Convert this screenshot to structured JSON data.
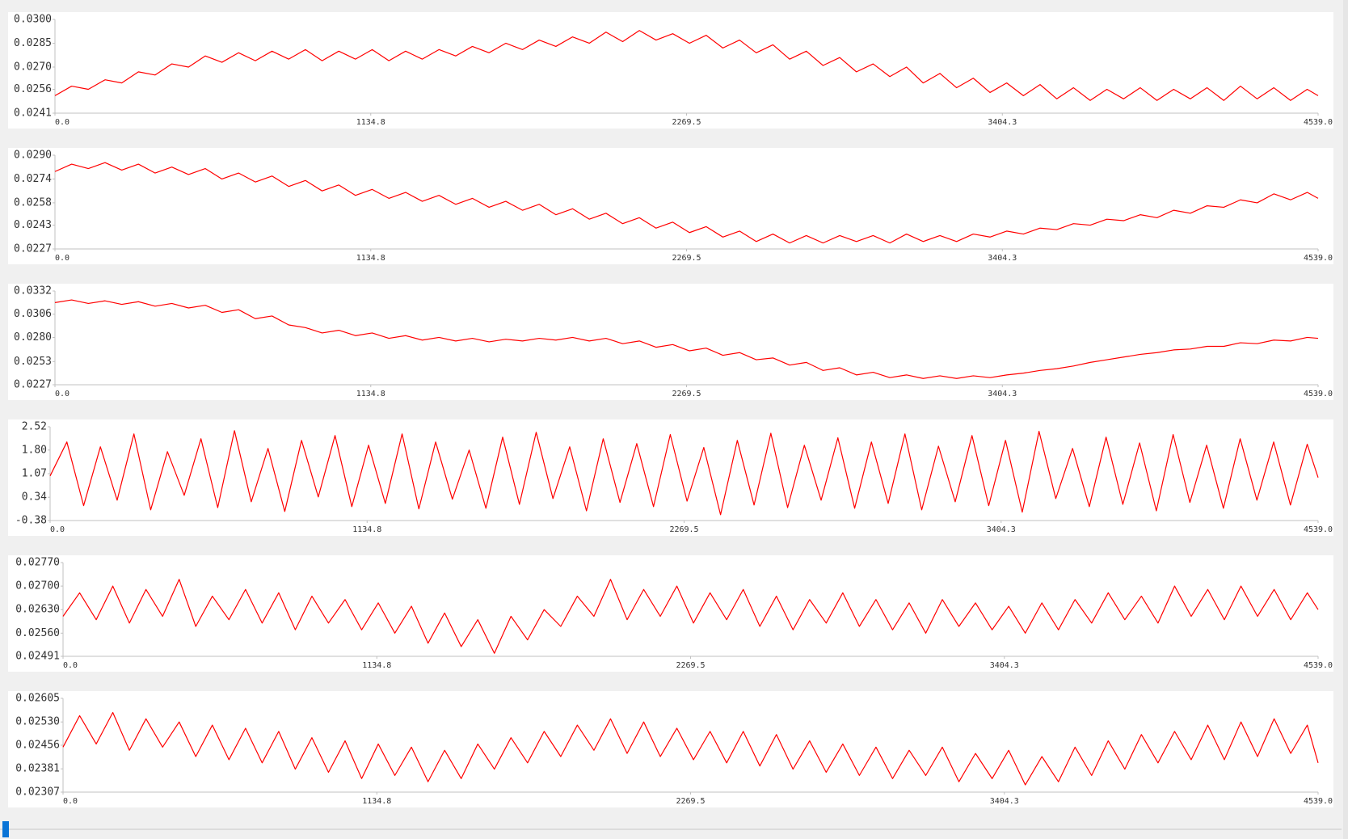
{
  "chart_data": [
    {
      "type": "line",
      "x": [
        0,
        60,
        120,
        180,
        240,
        300,
        360,
        420,
        480,
        540,
        600,
        660,
        720,
        780,
        840,
        900,
        960,
        1020,
        1080,
        1140,
        1200,
        1260,
        1320,
        1380,
        1440,
        1500,
        1560,
        1620,
        1680,
        1740,
        1800,
        1860,
        1920,
        1980,
        2040,
        2100,
        2160,
        2220,
        2280,
        2340,
        2400,
        2460,
        2520,
        2580,
        2640,
        2700,
        2760,
        2820,
        2880,
        2940,
        3000,
        3060,
        3120,
        3180,
        3240,
        3300,
        3360,
        3420,
        3480,
        3540,
        3600,
        3660,
        3720,
        3780,
        3840,
        3900,
        3960,
        4020,
        4080,
        4140,
        4200,
        4260,
        4320,
        4380,
        4440,
        4500,
        4539
      ],
      "series": [
        {
          "color": "#ff0000",
          "values": [
            0.0252,
            0.0258,
            0.0256,
            0.0262,
            0.026,
            0.0267,
            0.0265,
            0.0272,
            0.027,
            0.0277,
            0.0273,
            0.0279,
            0.0274,
            0.028,
            0.0275,
            0.0281,
            0.0274,
            0.028,
            0.0275,
            0.0281,
            0.0274,
            0.028,
            0.0275,
            0.0281,
            0.0277,
            0.0283,
            0.0279,
            0.0285,
            0.0281,
            0.0287,
            0.0283,
            0.0289,
            0.0285,
            0.0292,
            0.0286,
            0.0293,
            0.0287,
            0.0291,
            0.0285,
            0.029,
            0.0282,
            0.0287,
            0.0279,
            0.0284,
            0.0275,
            0.028,
            0.0271,
            0.0276,
            0.0267,
            0.0272,
            0.0264,
            0.027,
            0.026,
            0.0266,
            0.0257,
            0.0263,
            0.0254,
            0.026,
            0.0252,
            0.0259,
            0.025,
            0.0257,
            0.0249,
            0.0256,
            0.025,
            0.0257,
            0.0249,
            0.0256,
            0.025,
            0.0257,
            0.0249,
            0.0258,
            0.025,
            0.0257,
            0.0249,
            0.0256,
            0.0252
          ]
        }
      ],
      "xlim": [
        0,
        4539
      ],
      "xticks": [
        {
          "value": 0,
          "label": "0.0"
        },
        1134.8,
        2269.5,
        3404.3,
        {
          "value": 4539,
          "label": "4539.0"
        }
      ],
      "ylim": [
        0.0241,
        0.03
      ],
      "yticks": [
        0.0241,
        0.0256,
        {
          "value": 0.027,
          "label": "0.0270"
        },
        0.0285,
        {
          "value": 0.03,
          "label": "0.0300"
        }
      ]
    },
    {
      "type": "line",
      "x": [
        0,
        60,
        120,
        180,
        240,
        300,
        360,
        420,
        480,
        540,
        600,
        660,
        720,
        780,
        840,
        900,
        960,
        1020,
        1080,
        1140,
        1200,
        1260,
        1320,
        1380,
        1440,
        1500,
        1560,
        1620,
        1680,
        1740,
        1800,
        1860,
        1920,
        1980,
        2040,
        2100,
        2160,
        2220,
        2280,
        2340,
        2400,
        2460,
        2520,
        2580,
        2640,
        2700,
        2760,
        2820,
        2880,
        2940,
        3000,
        3060,
        3120,
        3180,
        3240,
        3300,
        3360,
        3420,
        3480,
        3540,
        3600,
        3660,
        3720,
        3780,
        3840,
        3900,
        3960,
        4020,
        4080,
        4140,
        4200,
        4260,
        4320,
        4380,
        4440,
        4500,
        4539
      ],
      "series": [
        {
          "color": "#ff0000",
          "values": [
            0.0279,
            0.0284,
            0.0281,
            0.0285,
            0.028,
            0.0284,
            0.0278,
            0.0282,
            0.0277,
            0.0281,
            0.0274,
            0.0278,
            0.0272,
            0.0276,
            0.0269,
            0.0273,
            0.0266,
            0.027,
            0.0263,
            0.0267,
            0.0261,
            0.0265,
            0.0259,
            0.0263,
            0.0257,
            0.0261,
            0.0255,
            0.0259,
            0.0253,
            0.0257,
            0.025,
            0.0254,
            0.0247,
            0.0251,
            0.0244,
            0.0248,
            0.0241,
            0.0245,
            0.0238,
            0.0242,
            0.0235,
            0.0239,
            0.0232,
            0.0237,
            0.0231,
            0.0236,
            0.0231,
            0.0236,
            0.0232,
            0.0236,
            0.0231,
            0.0237,
            0.0232,
            0.0236,
            0.0232,
            0.0237,
            0.0235,
            0.0239,
            0.0237,
            0.0241,
            0.024,
            0.0244,
            0.0243,
            0.0247,
            0.0246,
            0.025,
            0.0248,
            0.0253,
            0.0251,
            0.0256,
            0.0255,
            0.026,
            0.0258,
            0.0264,
            0.026,
            0.0265,
            0.0261
          ]
        }
      ],
      "xlim": [
        0,
        4539
      ],
      "xticks": [
        {
          "value": 0,
          "label": "0.0"
        },
        1134.8,
        2269.5,
        3404.3,
        {
          "value": 4539,
          "label": "4539.0"
        }
      ],
      "ylim": [
        0.0227,
        0.029
      ],
      "yticks": [
        0.0227,
        0.0243,
        0.0258,
        0.0274,
        {
          "value": 0.029,
          "label": "0.0290"
        }
      ]
    },
    {
      "type": "line",
      "x": [
        0,
        60,
        120,
        180,
        240,
        300,
        360,
        420,
        480,
        540,
        600,
        660,
        720,
        780,
        840,
        900,
        960,
        1020,
        1080,
        1140,
        1200,
        1260,
        1320,
        1380,
        1440,
        1500,
        1560,
        1620,
        1680,
        1740,
        1800,
        1860,
        1920,
        1980,
        2040,
        2100,
        2160,
        2220,
        2280,
        2340,
        2400,
        2460,
        2520,
        2580,
        2640,
        2700,
        2760,
        2820,
        2880,
        2940,
        3000,
        3060,
        3120,
        3180,
        3240,
        3300,
        3360,
        3420,
        3480,
        3540,
        3600,
        3660,
        3720,
        3780,
        3840,
        3900,
        3960,
        4020,
        4080,
        4140,
        4200,
        4260,
        4320,
        4380,
        4440,
        4500,
        4539
      ],
      "series": [
        {
          "color": "#ff0000",
          "values": [
            0.0319,
            0.0322,
            0.0318,
            0.0321,
            0.0317,
            0.032,
            0.0315,
            0.0318,
            0.0313,
            0.0316,
            0.0308,
            0.0311,
            0.0301,
            0.0304,
            0.0294,
            0.0291,
            0.0285,
            0.0288,
            0.0282,
            0.0285,
            0.0279,
            0.0282,
            0.0277,
            0.028,
            0.0276,
            0.0279,
            0.0275,
            0.0278,
            0.0276,
            0.0279,
            0.0277,
            0.028,
            0.0276,
            0.0279,
            0.0273,
            0.0276,
            0.0269,
            0.0272,
            0.0265,
            0.0268,
            0.026,
            0.0263,
            0.0255,
            0.0257,
            0.0249,
            0.0252,
            0.0243,
            0.0246,
            0.0238,
            0.0241,
            0.0235,
            0.0238,
            0.0234,
            0.0237,
            0.0234,
            0.0237,
            0.0235,
            0.0238,
            0.024,
            0.0243,
            0.0245,
            0.0248,
            0.0252,
            0.0255,
            0.0258,
            0.0261,
            0.0263,
            0.0266,
            0.0267,
            0.027,
            0.027,
            0.0274,
            0.0273,
            0.0277,
            0.0276,
            0.028,
            0.0279
          ]
        }
      ],
      "xlim": [
        0,
        4539
      ],
      "xticks": [
        {
          "value": 0,
          "label": "0.0"
        },
        1134.8,
        2269.5,
        3404.3,
        {
          "value": 4539,
          "label": "4539.0"
        }
      ],
      "ylim": [
        0.0227,
        0.0332
      ],
      "yticks": [
        0.0227,
        0.0253,
        {
          "value": 0.028,
          "label": "0.0280"
        },
        0.0306,
        0.0332
      ]
    },
    {
      "type": "line",
      "x": [
        0,
        60,
        120,
        180,
        240,
        300,
        360,
        420,
        480,
        540,
        600,
        660,
        720,
        780,
        840,
        900,
        960,
        1020,
        1080,
        1140,
        1200,
        1260,
        1320,
        1380,
        1440,
        1500,
        1560,
        1620,
        1680,
        1740,
        1800,
        1860,
        1920,
        1980,
        2040,
        2100,
        2160,
        2220,
        2280,
        2340,
        2400,
        2460,
        2520,
        2580,
        2640,
        2700,
        2760,
        2820,
        2880,
        2940,
        3000,
        3060,
        3120,
        3180,
        3240,
        3300,
        3360,
        3420,
        3480,
        3540,
        3600,
        3660,
        3720,
        3780,
        3840,
        3900,
        3960,
        4020,
        4080,
        4140,
        4200,
        4260,
        4320,
        4380,
        4440,
        4500,
        4539
      ],
      "series": [
        {
          "color": "#ff0000",
          "values": [
            1.0,
            2.05,
            0.08,
            1.9,
            0.25,
            2.3,
            -0.05,
            1.75,
            0.4,
            2.15,
            0.02,
            2.4,
            0.2,
            1.85,
            -0.1,
            2.1,
            0.35,
            2.25,
            0.05,
            1.95,
            0.15,
            2.3,
            -0.02,
            2.05,
            0.28,
            1.8,
            0.0,
            2.2,
            0.12,
            2.35,
            0.3,
            1.9,
            -0.08,
            2.15,
            0.18,
            2.0,
            0.05,
            2.28,
            0.22,
            1.88,
            -0.2,
            2.1,
            0.1,
            2.32,
            0.02,
            1.95,
            0.25,
            2.18,
            0.0,
            2.05,
            0.15,
            2.3,
            -0.05,
            1.92,
            0.2,
            2.25,
            0.08,
            2.1,
            -0.12,
            2.38,
            0.3,
            1.85,
            0.05,
            2.2,
            0.12,
            2.02,
            -0.08,
            2.28,
            0.18,
            1.95,
            0.0,
            2.15,
            0.25,
            2.05,
            0.1,
            1.98,
            0.95
          ]
        }
      ],
      "xlim": [
        0,
        4539
      ],
      "xticks": [
        {
          "value": 0,
          "label": "0.0"
        },
        1134.8,
        2269.5,
        3404.3,
        {
          "value": 4539,
          "label": "4539.0"
        }
      ],
      "ylim": [
        -0.38,
        2.52
      ],
      "yticks": [
        -0.38,
        0.34,
        1.07,
        {
          "value": 1.8,
          "label": "1.80"
        },
        2.52
      ]
    },
    {
      "type": "line",
      "x": [
        0,
        60,
        120,
        180,
        240,
        300,
        360,
        420,
        480,
        540,
        600,
        660,
        720,
        780,
        840,
        900,
        960,
        1020,
        1080,
        1140,
        1200,
        1260,
        1320,
        1380,
        1440,
        1500,
        1560,
        1620,
        1680,
        1740,
        1800,
        1860,
        1920,
        1980,
        2040,
        2100,
        2160,
        2220,
        2280,
        2340,
        2400,
        2460,
        2520,
        2580,
        2640,
        2700,
        2760,
        2820,
        2880,
        2940,
        3000,
        3060,
        3120,
        3180,
        3240,
        3300,
        3360,
        3420,
        3480,
        3540,
        3600,
        3660,
        3720,
        3780,
        3840,
        3900,
        3960,
        4020,
        4080,
        4140,
        4200,
        4260,
        4320,
        4380,
        4440,
        4500,
        4539
      ],
      "series": [
        {
          "color": "#ff0000",
          "values": [
            0.0261,
            0.0268,
            0.026,
            0.027,
            0.0259,
            0.0269,
            0.0261,
            0.0272,
            0.0258,
            0.0267,
            0.026,
            0.0269,
            0.0259,
            0.0268,
            0.0257,
            0.0267,
            0.0259,
            0.0266,
            0.0257,
            0.0265,
            0.0256,
            0.0264,
            0.0253,
            0.0262,
            0.0252,
            0.026,
            0.025,
            0.0261,
            0.0254,
            0.0263,
            0.0258,
            0.0267,
            0.0261,
            0.0272,
            0.026,
            0.0269,
            0.0261,
            0.027,
            0.0259,
            0.0268,
            0.026,
            0.0269,
            0.0258,
            0.0267,
            0.0257,
            0.0266,
            0.0259,
            0.0268,
            0.0258,
            0.0266,
            0.0257,
            0.0265,
            0.0256,
            0.0266,
            0.0258,
            0.0265,
            0.0257,
            0.0264,
            0.0256,
            0.0265,
            0.0257,
            0.0266,
            0.0259,
            0.0268,
            0.026,
            0.0267,
            0.0259,
            0.027,
            0.0261,
            0.0269,
            0.026,
            0.027,
            0.0261,
            0.0269,
            0.026,
            0.0268,
            0.0263
          ]
        }
      ],
      "xlim": [
        0,
        4539
      ],
      "xticks": [
        {
          "value": 0,
          "label": "0.0"
        },
        1134.8,
        2269.5,
        3404.3,
        {
          "value": 4539,
          "label": "4539.0"
        }
      ],
      "ylim": [
        0.02491,
        0.0277
      ],
      "yticks": [
        0.02491,
        {
          "value": 0.0256,
          "label": "0.02560"
        },
        {
          "value": 0.0263,
          "label": "0.02630"
        },
        {
          "value": 0.027,
          "label": "0.02700"
        },
        {
          "value": 0.0277,
          "label": "0.02770"
        }
      ]
    },
    {
      "type": "line",
      "x": [
        0,
        60,
        120,
        180,
        240,
        300,
        360,
        420,
        480,
        540,
        600,
        660,
        720,
        780,
        840,
        900,
        960,
        1020,
        1080,
        1140,
        1200,
        1260,
        1320,
        1380,
        1440,
        1500,
        1560,
        1620,
        1680,
        1740,
        1800,
        1860,
        1920,
        1980,
        2040,
        2100,
        2160,
        2220,
        2280,
        2340,
        2400,
        2460,
        2520,
        2580,
        2640,
        2700,
        2760,
        2820,
        2880,
        2940,
        3000,
        3060,
        3120,
        3180,
        3240,
        3300,
        3360,
        3420,
        3480,
        3540,
        3600,
        3660,
        3720,
        3780,
        3840,
        3900,
        3960,
        4020,
        4080,
        4140,
        4200,
        4260,
        4320,
        4380,
        4440,
        4500,
        4539
      ],
      "series": [
        {
          "color": "#ff0000",
          "values": [
            0.0245,
            0.0255,
            0.0246,
            0.0256,
            0.0244,
            0.0254,
            0.0245,
            0.0253,
            0.0242,
            0.0252,
            0.0241,
            0.0251,
            0.024,
            0.025,
            0.0238,
            0.0248,
            0.0237,
            0.0247,
            0.0235,
            0.0246,
            0.0236,
            0.0245,
            0.0234,
            0.0244,
            0.0235,
            0.0246,
            0.0238,
            0.0248,
            0.024,
            0.025,
            0.0242,
            0.0252,
            0.0244,
            0.0254,
            0.0243,
            0.0253,
            0.0242,
            0.0251,
            0.0241,
            0.025,
            0.024,
            0.025,
            0.0239,
            0.0249,
            0.0238,
            0.0247,
            0.0237,
            0.0246,
            0.0236,
            0.0245,
            0.0235,
            0.0244,
            0.0236,
            0.0245,
            0.0234,
            0.0243,
            0.0235,
            0.0244,
            0.0233,
            0.0242,
            0.0234,
            0.0245,
            0.0236,
            0.0247,
            0.0238,
            0.0249,
            0.024,
            0.025,
            0.0241,
            0.0252,
            0.0241,
            0.0253,
            0.0242,
            0.0254,
            0.0243,
            0.0252,
            0.024
          ]
        }
      ],
      "xlim": [
        0,
        4539
      ],
      "xticks": [
        {
          "value": 0,
          "label": "0.0"
        },
        1134.8,
        2269.5,
        3404.3,
        {
          "value": 4539,
          "label": "4539.0"
        }
      ],
      "ylim": [
        0.02307,
        0.02605
      ],
      "yticks": [
        0.02307,
        0.02381,
        0.02456,
        {
          "value": 0.0253,
          "label": "0.02530"
        },
        0.02605
      ]
    }
  ]
}
